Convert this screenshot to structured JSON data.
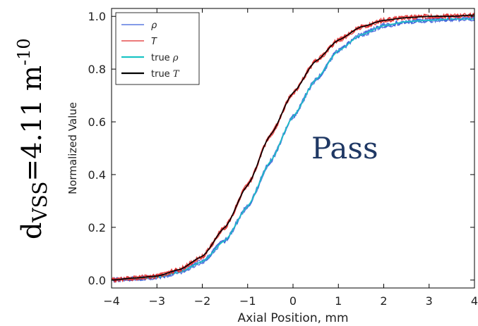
{
  "side_label": {
    "base": "d",
    "subscript": "VSS",
    "value": "=4.11 m",
    "exponent": "-10"
  },
  "overlay": {
    "pass_text": "Pass"
  },
  "colors": {
    "rho": "#3a5fd9",
    "T": "#e02a2a",
    "true_rho": "#1bc4c4",
    "true_T": "#000000",
    "pass": "#1f3864"
  },
  "chart_data": {
    "type": "line",
    "title": "",
    "xlabel": "Axial Position, mm",
    "ylabel": "Normalized Value",
    "xlim": [
      -4,
      4
    ],
    "ylim": [
      -0.03,
      1.03
    ],
    "xticks": [
      -4,
      -3,
      -2,
      -1,
      0,
      1,
      2,
      3,
      4
    ],
    "xtick_labels": [
      "−4",
      "−3",
      "−2",
      "−1",
      "0",
      "1",
      "2",
      "3",
      "4"
    ],
    "yticks": [
      0.0,
      0.2,
      0.4,
      0.6,
      0.8,
      1.0
    ],
    "ytick_labels": [
      "0.0",
      "0.2",
      "0.4",
      "0.6",
      "0.8",
      "1.0"
    ],
    "grid": false,
    "legend_position": "top-left",
    "series": [
      {
        "name": "ρ",
        "legend_style": "italic",
        "noisy": true,
        "color": "#3a5fd9",
        "x": [
          -4,
          -3.5,
          -3,
          -2.5,
          -2,
          -1.5,
          -1,
          -0.5,
          0,
          0.5,
          1,
          1.5,
          2,
          2.5,
          3,
          3.5,
          4
        ],
        "y": [
          0.0,
          0.005,
          0.01,
          0.03,
          0.07,
          0.15,
          0.28,
          0.45,
          0.62,
          0.76,
          0.87,
          0.93,
          0.965,
          0.98,
          0.985,
          0.99,
          0.99
        ]
      },
      {
        "name": "T",
        "legend_style": "italic",
        "noisy": true,
        "color": "#e02a2a",
        "x": [
          -4,
          -3.5,
          -3,
          -2.5,
          -2,
          -1.5,
          -1,
          -0.5,
          0,
          0.5,
          1,
          1.5,
          2,
          2.5,
          3,
          3.5,
          4
        ],
        "y": [
          0.0,
          0.008,
          0.015,
          0.04,
          0.09,
          0.2,
          0.36,
          0.55,
          0.71,
          0.83,
          0.91,
          0.96,
          0.985,
          0.995,
          1.0,
          1.0,
          1.005
        ]
      },
      {
        "name": "true ρ",
        "legend_style": "mixed",
        "noisy": false,
        "color": "#1bc4c4",
        "x": [
          -4,
          -3.5,
          -3,
          -2.5,
          -2,
          -1.5,
          -1,
          -0.5,
          0,
          0.5,
          1,
          1.5,
          2,
          2.5,
          3,
          3.5,
          4
        ],
        "y": [
          0.0,
          0.005,
          0.01,
          0.03,
          0.07,
          0.15,
          0.28,
          0.45,
          0.62,
          0.76,
          0.87,
          0.93,
          0.965,
          0.98,
          0.985,
          0.99,
          0.99
        ]
      },
      {
        "name": "true T",
        "legend_style": "mixed",
        "noisy": false,
        "color": "#000000",
        "x": [
          -4,
          -3.5,
          -3,
          -2.5,
          -2,
          -1.5,
          -1,
          -0.5,
          0,
          0.5,
          1,
          1.5,
          2,
          2.5,
          3,
          3.5,
          4
        ],
        "y": [
          0.0,
          0.008,
          0.015,
          0.04,
          0.09,
          0.2,
          0.36,
          0.55,
          0.71,
          0.83,
          0.91,
          0.96,
          0.985,
          0.995,
          1.0,
          1.0,
          1.005
        ]
      }
    ]
  }
}
